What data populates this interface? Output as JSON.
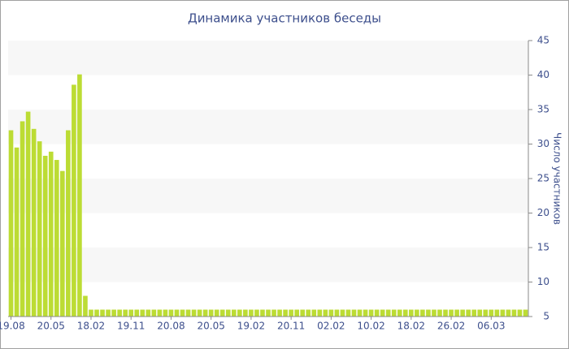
{
  "chart_data": {
    "type": "bar",
    "title": "Динамика участников беседы",
    "y_label": "Число участников",
    "categories": [
      "19.08",
      null,
      null,
      null,
      null,
      null,
      null,
      "20.05",
      null,
      null,
      null,
      null,
      null,
      null,
      "18.02",
      null,
      null,
      null,
      null,
      null,
      null,
      "19.11",
      null,
      null,
      null,
      null,
      null,
      null,
      "20.08",
      null,
      null,
      null,
      null,
      null,
      null,
      "20.05",
      null,
      null,
      null,
      null,
      null,
      null,
      "19.02",
      null,
      null,
      null,
      null,
      null,
      null,
      "20.11",
      null,
      null,
      null,
      null,
      null,
      null,
      "02.02",
      null,
      null,
      null,
      null,
      null,
      null,
      "10.02",
      null,
      null,
      null,
      null,
      null,
      null,
      "18.02",
      null,
      null,
      null,
      null,
      null,
      null,
      "26.02",
      null,
      null,
      null,
      null,
      null,
      null,
      "06.03",
      null,
      null,
      null,
      null,
      null,
      null
    ],
    "values": [
      32,
      29.5,
      33.3,
      34.7,
      32.2,
      30.4,
      28.3,
      28.9,
      27.7,
      26.1,
      32,
      38.6,
      40.1,
      8,
      6,
      6,
      6,
      6,
      6,
      6,
      6,
      6,
      6,
      6,
      6,
      6,
      6,
      6,
      6,
      6,
      6,
      6,
      6,
      6,
      6,
      6,
      6,
      6,
      6,
      6,
      6,
      6,
      6,
      6,
      6,
      6,
      6,
      6,
      6,
      6,
      6,
      6,
      6,
      6,
      6,
      6,
      6,
      6,
      6,
      6,
      6,
      6,
      6,
      6,
      6,
      6,
      6,
      6,
      6,
      6,
      6,
      6,
      6,
      6,
      6,
      6,
      6,
      6,
      6,
      6,
      6,
      6,
      6,
      6,
      6,
      6,
      6,
      6,
      6,
      6,
      6
    ],
    "color": "#bcdc34",
    "ylim": [
      5,
      45
    ],
    "yticks": [
      5,
      10,
      15,
      20,
      25,
      30,
      35,
      40,
      45
    ],
    "grid": "bands",
    "y_axis_side": "right"
  }
}
